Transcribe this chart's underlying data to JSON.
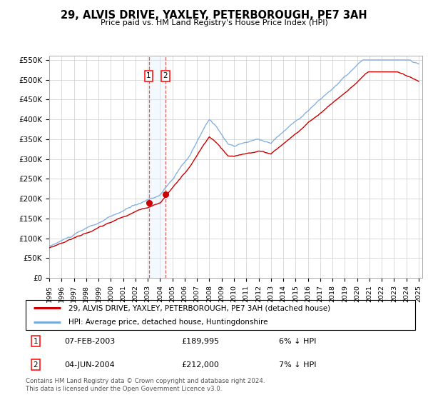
{
  "title": "29, ALVIS DRIVE, YAXLEY, PETERBOROUGH, PE7 3AH",
  "subtitle": "Price paid vs. HM Land Registry's House Price Index (HPI)",
  "ylim": [
    0,
    560000
  ],
  "yticks": [
    0,
    50000,
    100000,
    150000,
    200000,
    250000,
    300000,
    350000,
    400000,
    450000,
    500000,
    550000
  ],
  "ytick_labels": [
    "£0",
    "£50K",
    "£100K",
    "£150K",
    "£200K",
    "£250K",
    "£300K",
    "£350K",
    "£400K",
    "£450K",
    "£500K",
    "£550K"
  ],
  "legend_entry1": "29, ALVIS DRIVE, YAXLEY, PETERBOROUGH, PE7 3AH (detached house)",
  "legend_entry2": "HPI: Average price, detached house, Huntingdonshire",
  "transaction1_date": "07-FEB-2003",
  "transaction1_price": "£189,995",
  "transaction1_hpi": "6% ↓ HPI",
  "transaction2_date": "04-JUN-2004",
  "transaction2_price": "£212,000",
  "transaction2_hpi": "7% ↓ HPI",
  "footer": "Contains HM Land Registry data © Crown copyright and database right 2024.\nThis data is licensed under the Open Government Licence v3.0.",
  "line1_color": "#cc0000",
  "line2_color": "#7aaadd",
  "shading_color": "#ddeeff",
  "transaction1_x": 2003.08,
  "transaction2_x": 2004.42,
  "transaction1_y": 189995,
  "transaction2_y": 212000,
  "xlim_left": 1995.0,
  "xlim_right": 2025.3
}
